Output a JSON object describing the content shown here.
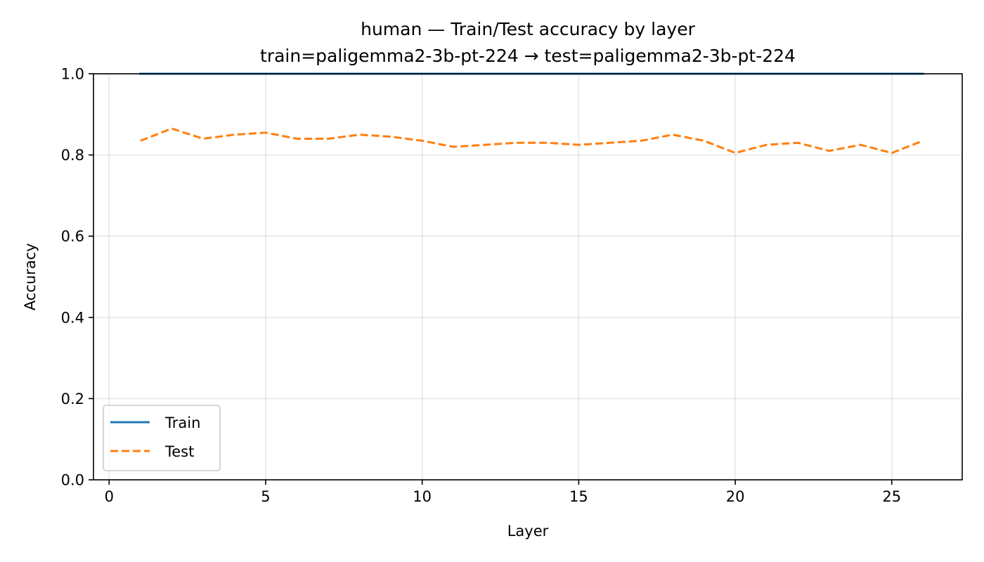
{
  "chart_data": {
    "type": "line",
    "title": "human — Train/Test accuracy by layer",
    "subtitle": "train=paligemma2-3b-pt-224 → test=paligemma2-3b-pt-224",
    "xlabel": "Layer",
    "ylabel": "Accuracy",
    "xlim": [
      -0.5,
      27.25
    ],
    "ylim": [
      0.0,
      1.0
    ],
    "xticks": [
      0,
      5,
      10,
      15,
      20,
      25
    ],
    "yticks": [
      0.0,
      0.2,
      0.4,
      0.6,
      0.8,
      1.0
    ],
    "ytick_labels": [
      "0.0",
      "0.2",
      "0.4",
      "0.6",
      "0.8",
      "1.0"
    ],
    "grid": true,
    "legend_position": "lower-left",
    "x": [
      1,
      2,
      3,
      4,
      5,
      6,
      7,
      8,
      9,
      10,
      11,
      12,
      13,
      14,
      15,
      16,
      17,
      18,
      19,
      20,
      21,
      22,
      23,
      24,
      25,
      26
    ],
    "series": [
      {
        "name": "Train",
        "color": "#1f77b4",
        "linestyle": "solid",
        "values": [
          1.0,
          1.0,
          1.0,
          1.0,
          1.0,
          1.0,
          1.0,
          1.0,
          1.0,
          1.0,
          1.0,
          1.0,
          1.0,
          1.0,
          1.0,
          1.0,
          1.0,
          1.0,
          1.0,
          1.0,
          1.0,
          1.0,
          1.0,
          1.0,
          1.0,
          1.0
        ]
      },
      {
        "name": "Test",
        "color": "#ff7f0e",
        "linestyle": "dashed",
        "values": [
          0.835,
          0.865,
          0.84,
          0.85,
          0.855,
          0.84,
          0.84,
          0.85,
          0.845,
          0.835,
          0.82,
          0.825,
          0.83,
          0.83,
          0.825,
          0.83,
          0.835,
          0.85,
          0.835,
          0.805,
          0.825,
          0.83,
          0.81,
          0.825,
          0.805,
          0.835
        ]
      }
    ]
  }
}
